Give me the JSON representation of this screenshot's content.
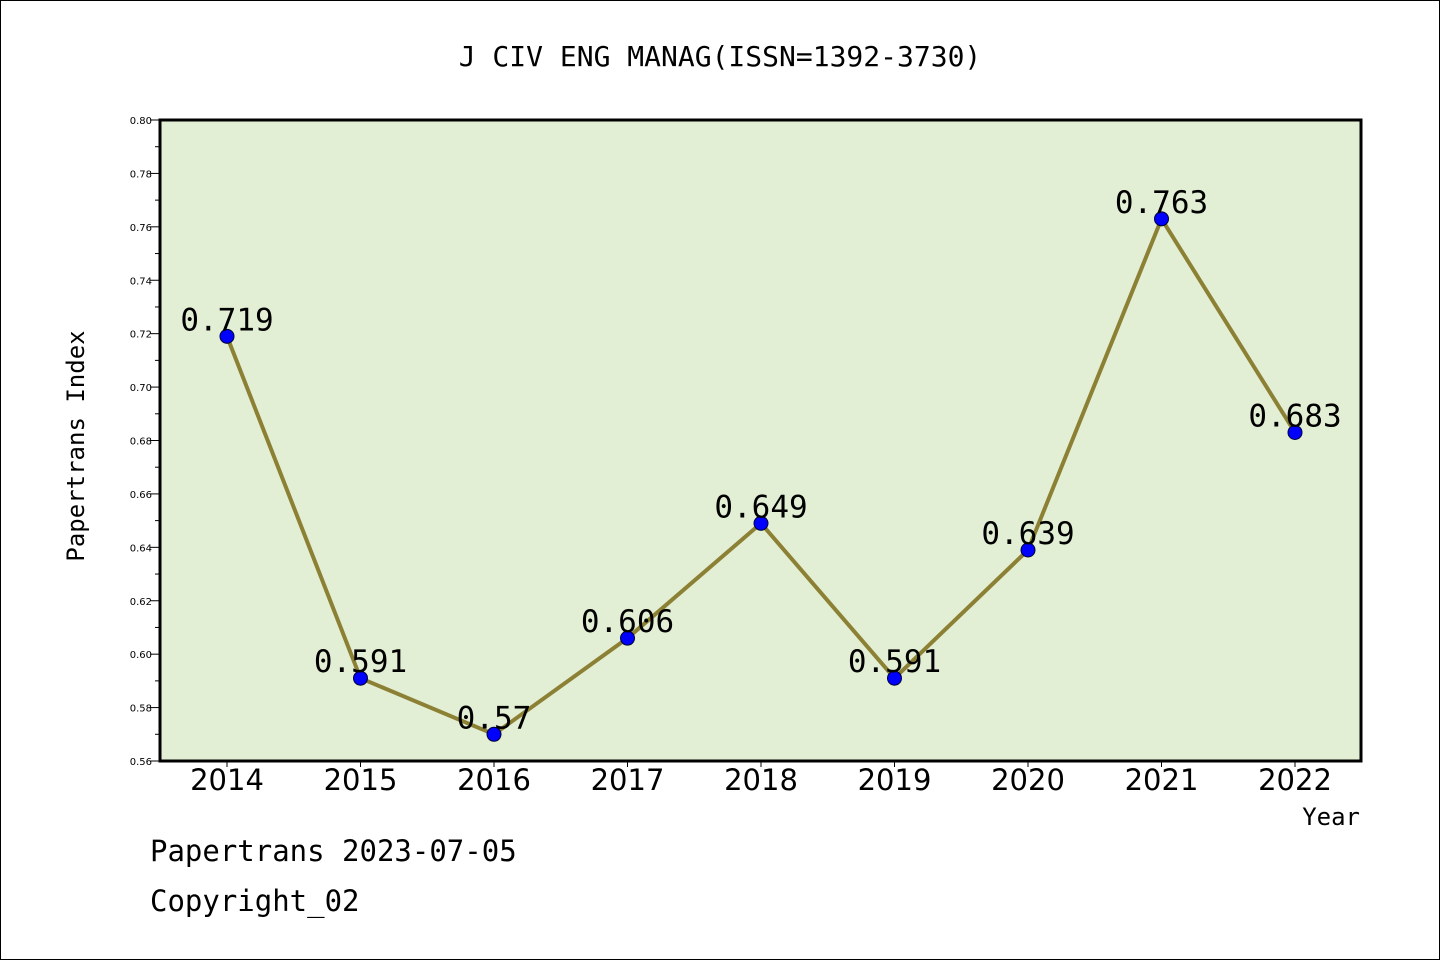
{
  "chart_data": {
    "type": "line",
    "title": "J CIV ENG MANAG(ISSN=1392-3730)",
    "xlabel": "Year",
    "ylabel": "Papertrans Index",
    "categories": [
      "2014",
      "2015",
      "2016",
      "2017",
      "2018",
      "2019",
      "2020",
      "2021",
      "2022"
    ],
    "series": [
      {
        "values": [
          0.719,
          0.591,
          0.57,
          0.606,
          0.649,
          0.591,
          0.639,
          0.763,
          0.683
        ]
      }
    ],
    "data_labels": [
      "0.719",
      "0.591",
      "0.57",
      "0.606",
      "0.649",
      "0.591",
      "0.639",
      "0.763",
      "0.683"
    ],
    "ylim": [
      0.56,
      0.8
    ],
    "yticks": [
      "0.56",
      "0.58",
      "0.60",
      "0.62",
      "0.64",
      "0.66",
      "0.68",
      "0.70",
      "0.72",
      "0.74",
      "0.76",
      "0.78",
      "0.80"
    ],
    "grid": false,
    "legend": "none",
    "colors": {
      "plot_bg": "#e2efd4",
      "line": "#8c8034",
      "marker": "#0000ff"
    }
  },
  "footer": {
    "source": "Papertrans 2023-07-05",
    "copyright": "Copyright_02"
  }
}
